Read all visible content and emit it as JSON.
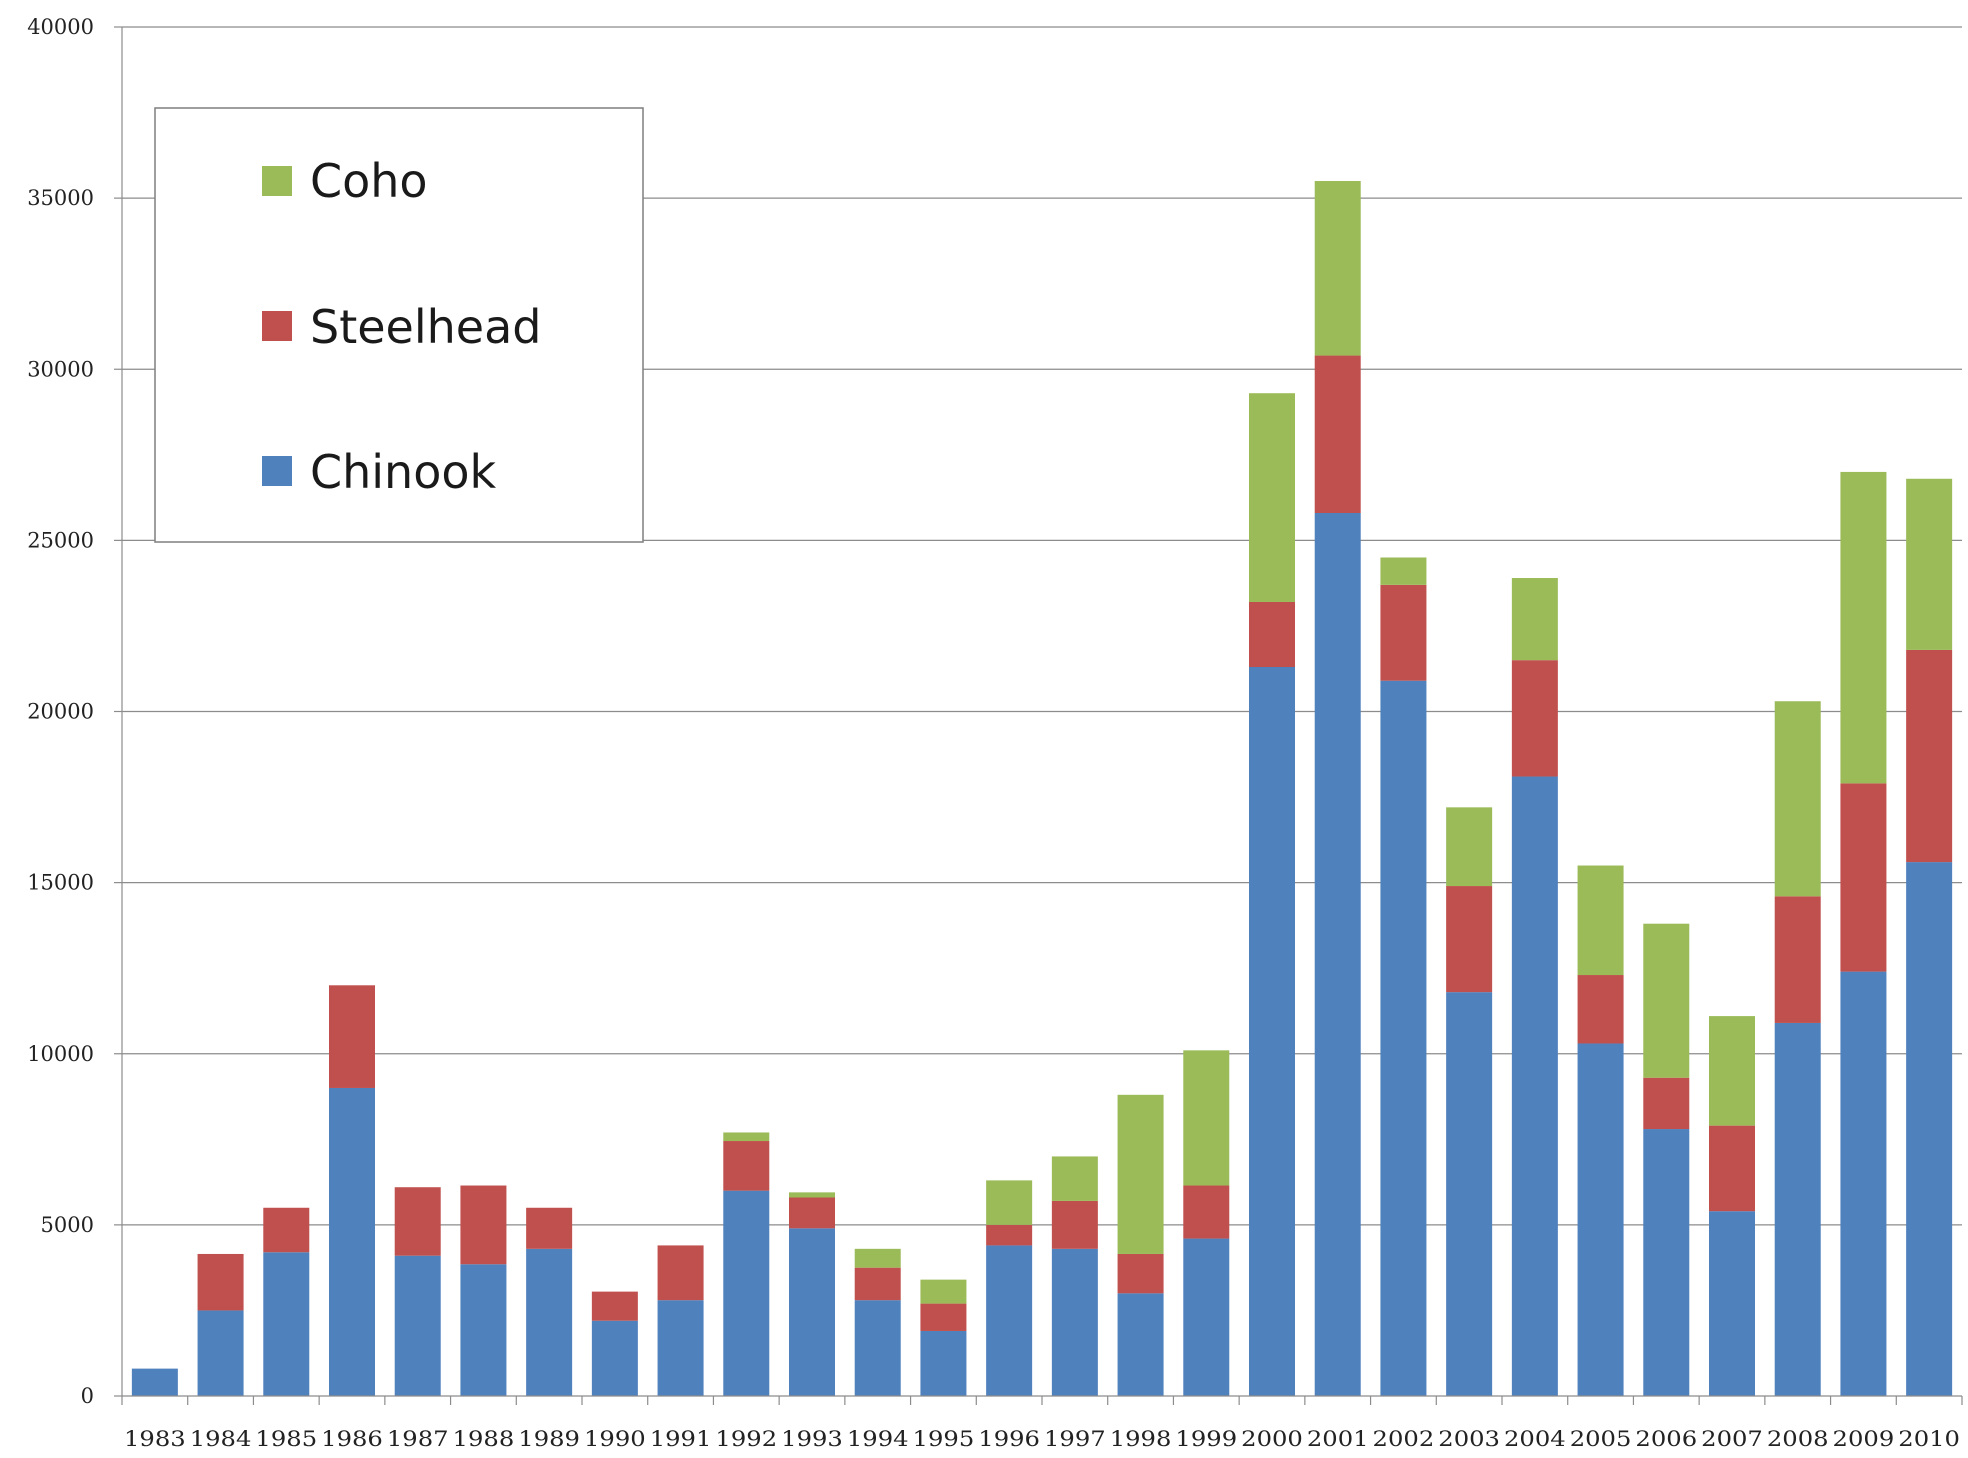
{
  "chart_data": {
    "type": "bar",
    "stacked": true,
    "title": "",
    "xlabel": "",
    "ylabel": "",
    "ylim": [
      0,
      40000
    ],
    "yticks": [
      0,
      5000,
      10000,
      15000,
      20000,
      25000,
      30000,
      35000,
      40000
    ],
    "grid": "horizontal",
    "legend_position": "top-left",
    "categories": [
      "1983",
      "1984",
      "1985",
      "1986",
      "1987",
      "1988",
      "1989",
      "1990",
      "1991",
      "1992",
      "1993",
      "1994",
      "1995",
      "1996",
      "1997",
      "1998",
      "1999",
      "2000",
      "2001",
      "2002",
      "2003",
      "2004",
      "2005",
      "2006",
      "2007",
      "2008",
      "2009",
      "2010"
    ],
    "series": [
      {
        "name": "Chinook",
        "color": "#4f81bd",
        "values": [
          800,
          2500,
          4200,
          9000,
          4100,
          3850,
          4300,
          2200,
          2800,
          6000,
          4900,
          2800,
          1900,
          4400,
          4300,
          3000,
          4600,
          21300,
          25800,
          20900,
          11800,
          18100,
          10300,
          7800,
          5400,
          10900,
          12400,
          15600
        ]
      },
      {
        "name": "Steelhead",
        "color": "#c0504d",
        "values": [
          0,
          1650,
          1300,
          3000,
          2000,
          2300,
          1200,
          850,
          1600,
          1450,
          900,
          950,
          800,
          600,
          1400,
          1150,
          1550,
          1900,
          4600,
          2800,
          3100,
          3400,
          2000,
          1500,
          2500,
          3700,
          5500,
          6200
        ]
      },
      {
        "name": "Coho",
        "color": "#9bbb59",
        "values": [
          0,
          0,
          0,
          0,
          0,
          0,
          0,
          0,
          0,
          250,
          150,
          550,
          700,
          1300,
          1300,
          4650,
          3950,
          6100,
          5100,
          800,
          2300,
          2400,
          3200,
          4500,
          3200,
          5700,
          9100,
          5000
        ]
      }
    ],
    "legend_order": [
      "Coho",
      "Steelhead",
      "Chinook"
    ]
  }
}
